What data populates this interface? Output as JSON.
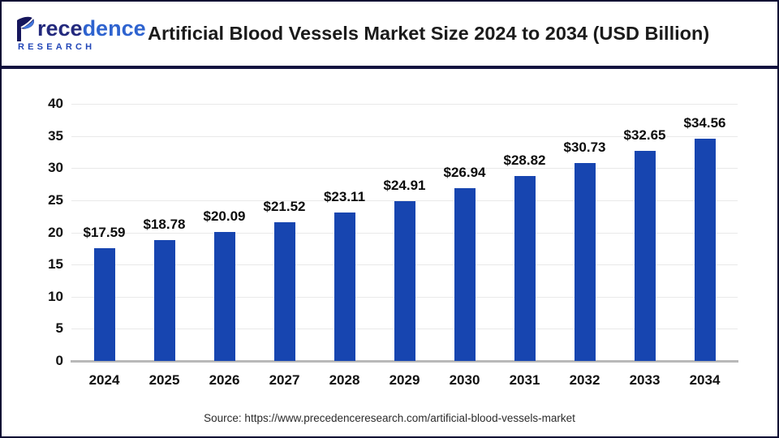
{
  "header": {
    "brand_part1": "rece",
    "brand_part2": "dence",
    "brand_sub": "RESEARCH",
    "title": "Artificial Blood Vessels Market Size 2024 to 2034 (USD Billion)"
  },
  "chart_data": {
    "type": "bar",
    "title": "Artificial Blood Vessels Market Size 2024 to 2034 (USD Billion)",
    "categories": [
      "2024",
      "2025",
      "2026",
      "2027",
      "2028",
      "2029",
      "2030",
      "2031",
      "2032",
      "2033",
      "2034"
    ],
    "values": [
      17.59,
      18.78,
      20.09,
      21.52,
      23.11,
      24.91,
      26.94,
      28.82,
      30.73,
      32.65,
      34.56
    ],
    "data_labels": [
      "$17.59",
      "$18.78",
      "$20.09",
      "$21.52",
      "$23.11",
      "$24.91",
      "$26.94",
      "$28.82",
      "$30.73",
      "$32.65",
      "$34.56"
    ],
    "xlabel": "",
    "ylabel": "",
    "ylim": [
      0,
      40
    ],
    "yticks": [
      0,
      5,
      10,
      15,
      20,
      25,
      30,
      35,
      40
    ],
    "grid": true,
    "legend": "none",
    "bar_color": "#1745b0"
  },
  "footer": {
    "source": "Source: https://www.precedenceresearch.com/artificial-blood-vessels-market"
  },
  "colors": {
    "bar": "#1745b0",
    "separator": "#12123f",
    "frame_border": "#0d0d33",
    "gridline": "#e9e9e9",
    "baseline": "#b9b9b9",
    "brand_dark": "#23297d",
    "brand_light": "#2e63cf",
    "brand_sub": "#2347b8"
  },
  "icons": {
    "logo_leaf": "precedence-leaf-icon"
  }
}
